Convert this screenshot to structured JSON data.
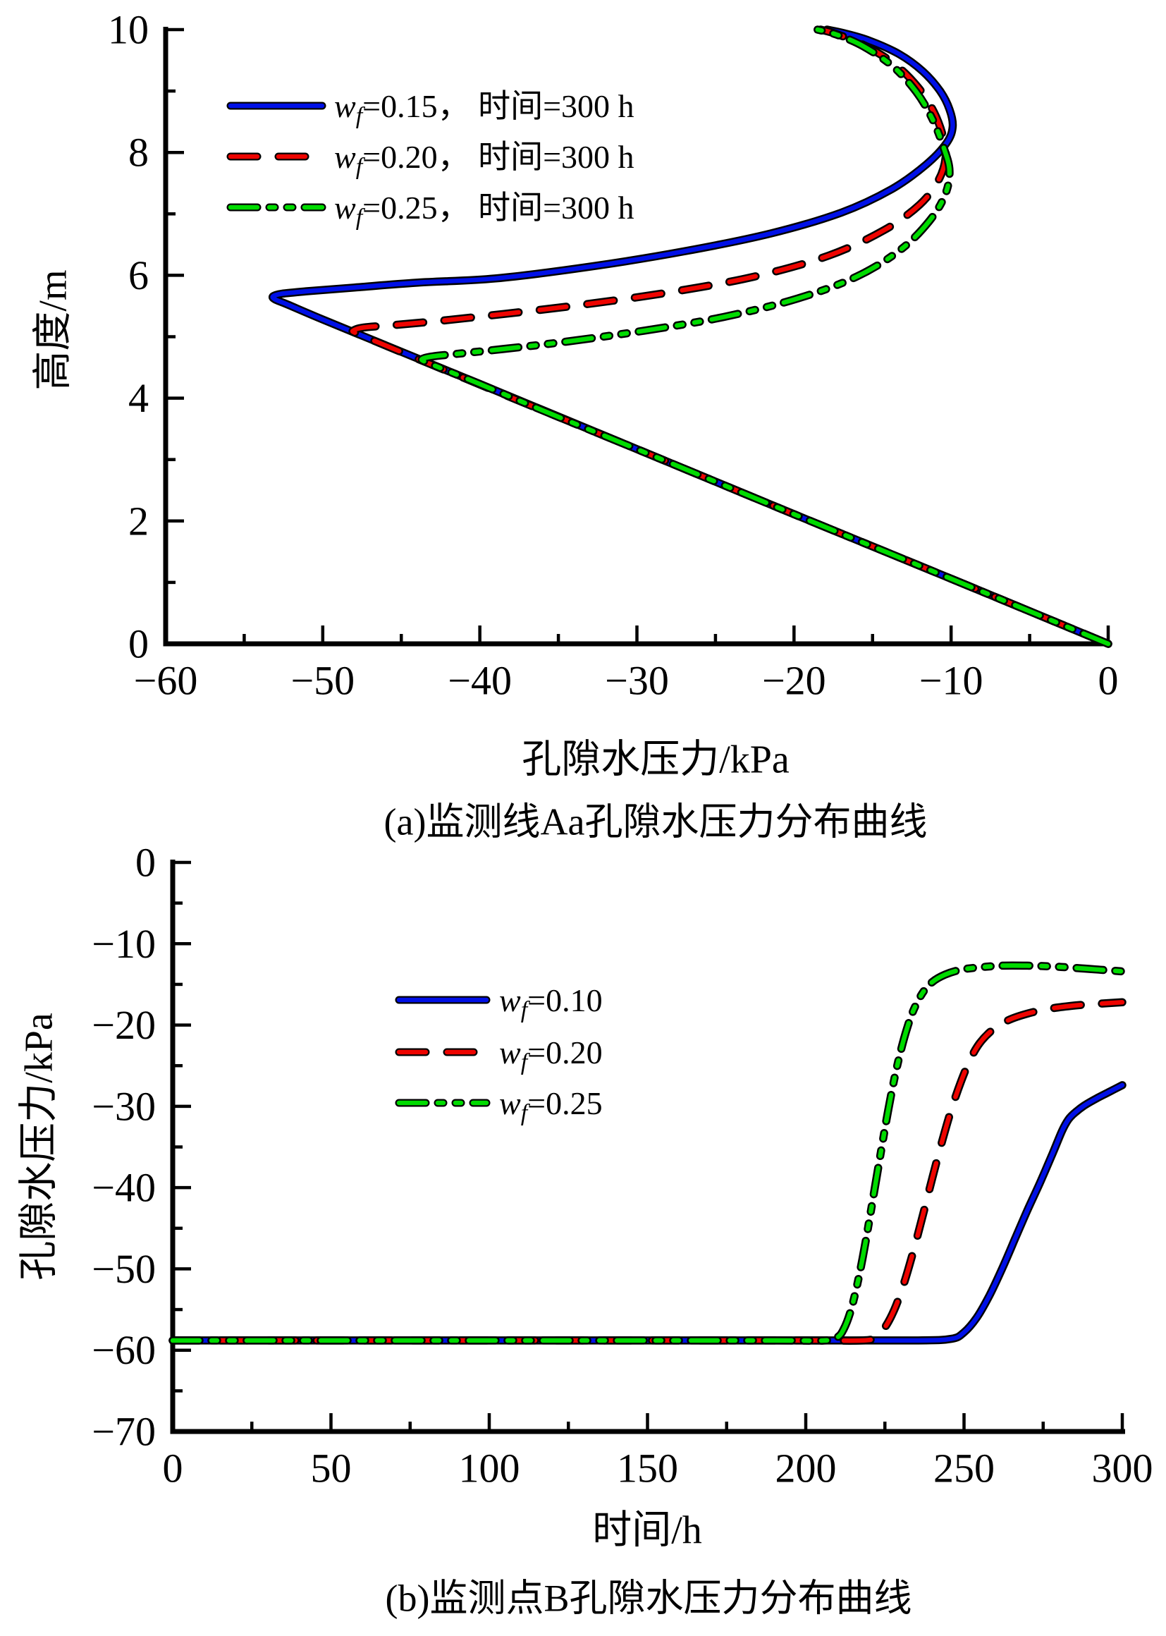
{
  "figure": {
    "background": "#ffffff",
    "description_texts": {
      "chart_a_x_title": "孔隙水压力/kPa",
      "chart_a_y_title": "高度/m",
      "chart_a_caption": "(a)监测线Aa孔隙水压力分布曲线",
      "chart_b_x_title": "时间/h",
      "chart_b_y_title": "孔隙水压力/kPa",
      "chart_b_caption": "(b)监测点B孔隙水压力分布曲线"
    }
  },
  "chart_data": [
    {
      "id": "a",
      "type": "line",
      "x_title": "孔隙水压力/kPa",
      "y_title": "高度/m",
      "caption": "(a)监测线Aa孔隙水压力分布曲线",
      "x_axis": {
        "min": -60,
        "max": 0,
        "major": 10,
        "minor": 5,
        "ticks": [
          "−60",
          "−50",
          "−40",
          "−30",
          "−20",
          "−10",
          "0"
        ]
      },
      "y_axis": {
        "min": 0,
        "max": 10,
        "major": 2,
        "minor": 1,
        "ticks": [
          "0",
          "2",
          "4",
          "6",
          "8",
          "10"
        ]
      },
      "grid": false,
      "legend": {
        "position": "upper-left-inside",
        "items": [
          {
            "sym": "w",
            "sub": "f",
            "rest": "=0.15， 时间=300 h",
            "color": "#0010E6",
            "dash": "solid"
          },
          {
            "sym": "w",
            "sub": "f",
            "rest": "=0.20， 时间=300 h",
            "color": "#EE0400",
            "dash": "dash"
          },
          {
            "sym": "w",
            "sub": "f",
            "rest": "=0.25， 时间=300 h",
            "color": "#00DB00",
            "dash": "dashdotdot"
          }
        ]
      },
      "series": [
        {
          "name": "wf=0.15, t=300h",
          "color": "#0010E6",
          "dash": "solid",
          "points": [
            [
              0,
              0
            ],
            [
              -10,
              1.06
            ],
            [
              -20,
              2.11
            ],
            [
              -30,
              3.17
            ],
            [
              -40,
              4.23
            ],
            [
              -46,
              4.86
            ],
            [
              -50,
              5.28
            ],
            [
              -52.2,
              5.52
            ],
            [
              -53.05,
              5.61
            ],
            [
              -53.15,
              5.66
            ],
            [
              -52.6,
              5.7
            ],
            [
              -51,
              5.74
            ],
            [
              -48,
              5.8
            ],
            [
              -44,
              5.88
            ],
            [
              -39,
              5.95
            ],
            [
              -33,
              6.14
            ],
            [
              -27,
              6.39
            ],
            [
              -21.5,
              6.68
            ],
            [
              -17,
              7.02
            ],
            [
              -13.8,
              7.4
            ],
            [
              -11.6,
              7.8
            ],
            [
              -10.3,
              8.15
            ],
            [
              -9.9,
              8.42
            ],
            [
              -10.1,
              8.7
            ],
            [
              -10.7,
              9.0
            ],
            [
              -11.8,
              9.32
            ],
            [
              -13.3,
              9.6
            ],
            [
              -15.2,
              9.82
            ],
            [
              -16.8,
              9.94
            ],
            [
              -17.9,
              10
            ]
          ]
        },
        {
          "name": "wf=0.20, t=300h",
          "color": "#EE0400",
          "dash": "dash",
          "points": [
            [
              0,
              0
            ],
            [
              -10,
              1.06
            ],
            [
              -20,
              2.11
            ],
            [
              -30,
              3.17
            ],
            [
              -38,
              4.01
            ],
            [
              -43,
              4.54
            ],
            [
              -46.5,
              4.91
            ],
            [
              -47.9,
              5.06
            ],
            [
              -48.05,
              5.1
            ],
            [
              -47.4,
              5.15
            ],
            [
              -45.5,
              5.19
            ],
            [
              -42.5,
              5.26
            ],
            [
              -38.5,
              5.37
            ],
            [
              -33.5,
              5.52
            ],
            [
              -28,
              5.72
            ],
            [
              -22.5,
              5.98
            ],
            [
              -17.8,
              6.32
            ],
            [
              -14.3,
              6.73
            ],
            [
              -12,
              7.15
            ],
            [
              -10.8,
              7.55
            ],
            [
              -10.35,
              7.92
            ],
            [
              -10.5,
              8.25
            ],
            [
              -11.1,
              8.66
            ],
            [
              -12.1,
              9.06
            ],
            [
              -13.6,
              9.44
            ],
            [
              -15.5,
              9.74
            ],
            [
              -17.2,
              9.92
            ],
            [
              -18.3,
              10
            ]
          ]
        },
        {
          "name": "wf=0.25, t=300h",
          "color": "#00DB00",
          "dash": "dashdotdot",
          "points": [
            [
              0,
              0
            ],
            [
              -10,
              1.06
            ],
            [
              -20,
              2.11
            ],
            [
              -30,
              3.17
            ],
            [
              -36,
              3.8
            ],
            [
              -40,
              4.23
            ],
            [
              -42.6,
              4.5
            ],
            [
              -43.55,
              4.6
            ],
            [
              -43.65,
              4.64
            ],
            [
              -43,
              4.68
            ],
            [
              -41.5,
              4.72
            ],
            [
              -38.5,
              4.8
            ],
            [
              -34.5,
              4.92
            ],
            [
              -29.5,
              5.1
            ],
            [
              -24.5,
              5.32
            ],
            [
              -19.8,
              5.62
            ],
            [
              -16,
              5.98
            ],
            [
              -13.2,
              6.42
            ],
            [
              -11.4,
              6.88
            ],
            [
              -10.4,
              7.3
            ],
            [
              -10.1,
              7.7
            ],
            [
              -10.5,
              8.1
            ],
            [
              -11.2,
              8.55
            ],
            [
              -12.2,
              8.98
            ],
            [
              -13.7,
              9.4
            ],
            [
              -15.6,
              9.73
            ],
            [
              -17.3,
              9.92
            ],
            [
              -18.5,
              10
            ]
          ]
        }
      ]
    },
    {
      "id": "b",
      "type": "line",
      "x_title": "时间/h",
      "y_title": "孔隙水压力/kPa",
      "caption": "(b)监测点B孔隙水压力分布曲线",
      "x_axis": {
        "min": 0,
        "max": 300,
        "major": 50,
        "minor": 25,
        "ticks": [
          "0",
          "50",
          "100",
          "150",
          "200",
          "250",
          "300"
        ]
      },
      "y_axis": {
        "min": -70,
        "max": 0,
        "major": 10,
        "minor": 5,
        "ticks": [
          "−70",
          "−60",
          "−50",
          "−40",
          "−30",
          "−20",
          "−10",
          "0"
        ]
      },
      "grid": false,
      "legend": {
        "position": "upper-middle-inside",
        "items": [
          {
            "sym": "w",
            "sub": "f",
            "rest": "=0.10",
            "color": "#0010E6",
            "dash": "solid"
          },
          {
            "sym": "w",
            "sub": "f",
            "rest": "=0.20",
            "color": "#EE0400",
            "dash": "dash"
          },
          {
            "sym": "w",
            "sub": "f",
            "rest": "=0.25",
            "color": "#00DB00",
            "dash": "dashdotdot"
          }
        ]
      },
      "series": [
        {
          "name": "wf=0.10",
          "color": "#0010E6",
          "dash": "solid",
          "points": [
            [
              0,
              -58.8
            ],
            [
              50,
              -58.8
            ],
            [
              100,
              -58.8
            ],
            [
              150,
              -58.8
            ],
            [
              200,
              -58.8
            ],
            [
              235,
              -58.8
            ],
            [
              246,
              -58.6
            ],
            [
              250,
              -57.8
            ],
            [
              254,
              -56
            ],
            [
              258,
              -53.3
            ],
            [
              262,
              -50
            ],
            [
              266,
              -46.4
            ],
            [
              270,
              -42.8
            ],
            [
              274,
              -39.4
            ],
            [
              278,
              -35.8
            ],
            [
              281,
              -33
            ],
            [
              283,
              -31.6
            ],
            [
              285,
              -30.8
            ],
            [
              288,
              -29.9
            ],
            [
              292,
              -29
            ],
            [
              296,
              -28.2
            ],
            [
              300,
              -27.4
            ]
          ]
        },
        {
          "name": "wf=0.20",
          "color": "#EE0400",
          "dash": "dash",
          "points": [
            [
              0,
              -58.8
            ],
            [
              50,
              -58.8
            ],
            [
              100,
              -58.8
            ],
            [
              150,
              -58.8
            ],
            [
              200,
              -58.8
            ],
            [
              218,
              -58.8
            ],
            [
              222,
              -58.4
            ],
            [
              225,
              -57.2
            ],
            [
              228,
              -55
            ],
            [
              231,
              -51.8
            ],
            [
              234,
              -47.8
            ],
            [
              237,
              -43.4
            ],
            [
              240,
              -38.8
            ],
            [
              243,
              -34.4
            ],
            [
              246,
              -30.4
            ],
            [
              249,
              -27
            ],
            [
              252,
              -24.2
            ],
            [
              255,
              -22.2
            ],
            [
              259,
              -20.6
            ],
            [
              264,
              -19.4
            ],
            [
              270,
              -18.6
            ],
            [
              277,
              -18
            ],
            [
              285,
              -17.6
            ],
            [
              292,
              -17.4
            ],
            [
              300,
              -17.2
            ]
          ]
        },
        {
          "name": "wf=0.25",
          "color": "#00DB00",
          "dash": "dashdotdot",
          "points": [
            [
              0,
              -58.8
            ],
            [
              50,
              -58.8
            ],
            [
              100,
              -58.8
            ],
            [
              150,
              -58.8
            ],
            [
              190,
              -58.8
            ],
            [
              206,
              -58.8
            ],
            [
              210,
              -58.4
            ],
            [
              212,
              -57.4
            ],
            [
              214,
              -55.4
            ],
            [
              216,
              -52.4
            ],
            [
              218,
              -48.6
            ],
            [
              220,
              -44.2
            ],
            [
              222,
              -39.6
            ],
            [
              224,
              -35
            ],
            [
              226,
              -30.6
            ],
            [
              228,
              -26.6
            ],
            [
              230,
              -23.2
            ],
            [
              232,
              -20.4
            ],
            [
              234,
              -18.2
            ],
            [
              237,
              -16
            ],
            [
              240,
              -14.7
            ],
            [
              244,
              -13.8
            ],
            [
              249,
              -13.2
            ],
            [
              255,
              -12.9
            ],
            [
              262,
              -12.7
            ],
            [
              270,
              -12.7
            ],
            [
              278,
              -12.8
            ],
            [
              286,
              -13
            ],
            [
              293,
              -13.2
            ],
            [
              300,
              -13.4
            ]
          ]
        }
      ]
    }
  ]
}
